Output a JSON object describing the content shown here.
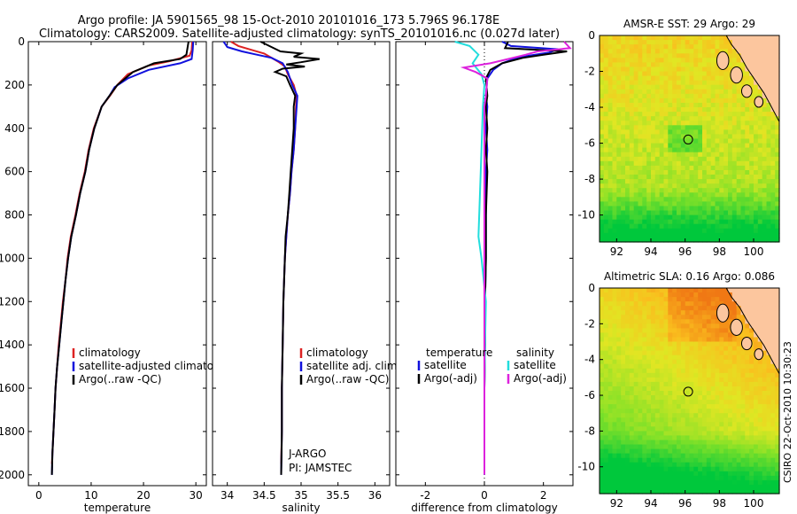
{
  "title": {
    "line1": "Argo profile: JA 5901565_98 15-Oct-2010 20101016_173 5.796S 96.178E",
    "line2": "Climatology: CARS2009. Satellite-adjusted climatology: synTS_20101016.nc (0.027d later)"
  },
  "credit": "CSIRO 22-Oct-2010 10:30:23",
  "colors": {
    "climatology": "#dd2222",
    "satellite": "#1111dd",
    "argo": "#000000",
    "satellite_salinity": "#22dddd",
    "argo_salinity": "#dd22dd"
  },
  "chart_data": [
    {
      "id": "temperature",
      "type": "line",
      "xlabel": "temperature",
      "xlim": [
        -2,
        32
      ],
      "ylim": [
        0,
        2050
      ],
      "xticks": [
        0,
        10,
        20,
        30
      ],
      "yticks": [
        0,
        200,
        400,
        600,
        800,
        1000,
        1200,
        1400,
        1600,
        1800,
        2000
      ],
      "legend": [
        "climatology",
        "satellite-adjusted climatology",
        "Argo(..raw -QC)"
      ],
      "series": [
        {
          "name": "climatology",
          "color": "#dd2222",
          "points": [
            [
              29.3,
              0
            ],
            [
              29.2,
              40
            ],
            [
              28.8,
              65
            ],
            [
              25,
              90
            ],
            [
              21,
              110
            ],
            [
              17,
              150
            ],
            [
              15,
              200
            ],
            [
              13.6,
              250
            ],
            [
              12,
              300
            ],
            [
              10.5,
              400
            ],
            [
              9.5,
              500
            ],
            [
              8.8,
              600
            ],
            [
              7.8,
              700
            ],
            [
              7,
              800
            ],
            [
              6.1,
              900
            ],
            [
              5.5,
              1000
            ],
            [
              5.1,
              1100
            ],
            [
              4.6,
              1200
            ],
            [
              4.2,
              1300
            ],
            [
              3.8,
              1400
            ],
            [
              3.5,
              1500
            ],
            [
              3.2,
              1600
            ],
            [
              3,
              1700
            ],
            [
              2.8,
              1800
            ],
            [
              2.6,
              1900
            ],
            [
              2.5,
              1950
            ]
          ]
        },
        {
          "name": "satellite-adjusted climatology",
          "color": "#1111dd",
          "points": [
            [
              29.5,
              0
            ],
            [
              29.4,
              40
            ],
            [
              29.2,
              80
            ],
            [
              27,
              100
            ],
            [
              21,
              130
            ],
            [
              17,
              170
            ],
            [
              14.5,
              210
            ],
            [
              13.5,
              250
            ],
            [
              12,
              300
            ],
            [
              10.6,
              400
            ],
            [
              9.6,
              500
            ],
            [
              8.9,
              600
            ],
            [
              7.9,
              700
            ],
            [
              7.1,
              800
            ],
            [
              6.2,
              900
            ],
            [
              5.6,
              1000
            ],
            [
              5.1,
              1100
            ],
            [
              4.7,
              1200
            ],
            [
              4.3,
              1300
            ],
            [
              3.9,
              1400
            ],
            [
              3.5,
              1500
            ],
            [
              3.2,
              1600
            ],
            [
              3,
              1700
            ],
            [
              2.8,
              1800
            ],
            [
              2.6,
              1900
            ],
            [
              2.5,
              2000
            ]
          ]
        },
        {
          "name": "Argo(..raw -QC)",
          "color": "#000000",
          "points": [
            [
              28.6,
              0
            ],
            [
              28.4,
              30
            ],
            [
              28.2,
              60
            ],
            [
              27,
              80
            ],
            [
              22,
              100
            ],
            [
              18,
              140
            ],
            [
              15,
              200
            ],
            [
              13.5,
              250
            ],
            [
              12,
              300
            ],
            [
              10.6,
              400
            ],
            [
              9.6,
              500
            ],
            [
              8.9,
              600
            ],
            [
              7.9,
              700
            ],
            [
              7.1,
              800
            ],
            [
              6.2,
              900
            ],
            [
              5.6,
              1000
            ],
            [
              5.1,
              1100
            ],
            [
              4.7,
              1200
            ],
            [
              4.3,
              1300
            ],
            [
              3.9,
              1400
            ],
            [
              3.5,
              1500
            ],
            [
              3.2,
              1600
            ],
            [
              3,
              1700
            ],
            [
              2.8,
              1800
            ],
            [
              2.6,
              1900
            ],
            [
              2.5,
              2000
            ]
          ]
        }
      ]
    },
    {
      "id": "salinity",
      "type": "line",
      "xlabel": "salinity",
      "xlim": [
        33.8,
        36.2
      ],
      "ylim": [
        0,
        2050
      ],
      "xticks": [
        34,
        34.5,
        35,
        35.5,
        36
      ],
      "legend": [
        "climatology",
        "satellite adj. clim.",
        "Argo(..raw -QC)"
      ],
      "annotations": [
        "J-ARGO",
        "PI: JAMSTEC"
      ],
      "series": [
        {
          "name": "climatology",
          "color": "#dd2222",
          "points": [
            [
              34.05,
              0
            ],
            [
              34.15,
              20
            ],
            [
              34.35,
              40
            ],
            [
              34.5,
              55
            ],
            [
              34.6,
              75
            ],
            [
              34.7,
              95
            ],
            [
              34.78,
              115
            ],
            [
              34.82,
              150
            ],
            [
              34.9,
              200
            ],
            [
              34.94,
              250
            ],
            [
              34.93,
              300
            ],
            [
              34.92,
              400
            ],
            [
              34.9,
              500
            ],
            [
              34.87,
              600
            ],
            [
              34.85,
              700
            ],
            [
              34.82,
              800
            ],
            [
              34.8,
              900
            ],
            [
              34.78,
              1000
            ],
            [
              34.76,
              1200
            ],
            [
              34.75,
              1400
            ],
            [
              34.74,
              1600
            ],
            [
              34.74,
              1800
            ],
            [
              34.73,
              1950
            ]
          ]
        },
        {
          "name": "satellite adj. clim.",
          "color": "#1111dd",
          "points": [
            [
              33.95,
              0
            ],
            [
              34.0,
              25
            ],
            [
              34.2,
              45
            ],
            [
              34.4,
              60
            ],
            [
              34.6,
              75
            ],
            [
              34.75,
              100
            ],
            [
              34.82,
              140
            ],
            [
              34.88,
              200
            ],
            [
              34.95,
              250
            ],
            [
              34.94,
              300
            ],
            [
              34.92,
              400
            ],
            [
              34.9,
              500
            ],
            [
              34.87,
              600
            ],
            [
              34.85,
              700
            ],
            [
              34.82,
              800
            ],
            [
              34.8,
              900
            ],
            [
              34.78,
              1000
            ],
            [
              34.76,
              1200
            ],
            [
              34.75,
              1400
            ],
            [
              34.74,
              1600
            ],
            [
              34.74,
              1800
            ],
            [
              34.73,
              2000
            ]
          ]
        },
        {
          "name": "Argo(..raw -QC)",
          "color": "#000000",
          "points": [
            [
              34.45,
              0
            ],
            [
              34.6,
              25
            ],
            [
              34.72,
              45
            ],
            [
              35.0,
              55
            ],
            [
              34.9,
              70
            ],
            [
              35.25,
              80
            ],
            [
              35.0,
              95
            ],
            [
              34.8,
              105
            ],
            [
              35.05,
              115
            ],
            [
              34.75,
              125
            ],
            [
              34.65,
              140
            ],
            [
              34.8,
              160
            ],
            [
              34.85,
              200
            ],
            [
              34.92,
              250
            ],
            [
              34.9,
              300
            ],
            [
              34.9,
              400
            ],
            [
              34.88,
              500
            ],
            [
              34.86,
              600
            ],
            [
              34.84,
              700
            ],
            [
              34.82,
              800
            ],
            [
              34.79,
              900
            ],
            [
              34.78,
              1000
            ],
            [
              34.76,
              1200
            ],
            [
              34.75,
              1400
            ],
            [
              34.74,
              1600
            ],
            [
              34.74,
              1800
            ],
            [
              34.73,
              2000
            ]
          ]
        }
      ]
    },
    {
      "id": "difference",
      "type": "line",
      "xlabel": "difference from climatology",
      "xlim": [
        -3,
        3
      ],
      "ylim": [
        0,
        2050
      ],
      "xticks": [
        -2,
        0,
        2
      ],
      "legend_left_title": "temperature",
      "legend_right_title": "salinity",
      "legend_left": [
        "satellite",
        "Argo(-adj)"
      ],
      "legend_right": [
        "satellite",
        "Argo(-adj)"
      ],
      "series": [
        {
          "name": "temperature satellite",
          "color": "#1111dd",
          "points": [
            [
              0.6,
              0
            ],
            [
              0.9,
              20
            ],
            [
              2.5,
              35
            ],
            [
              2.2,
              50
            ],
            [
              1.5,
              65
            ],
            [
              1.0,
              80
            ],
            [
              0.6,
              100
            ],
            [
              0.3,
              130
            ],
            [
              0.1,
              170
            ],
            [
              0.05,
              250
            ],
            [
              0.1,
              300
            ],
            [
              0.05,
              400
            ],
            [
              0.1,
              500
            ],
            [
              0.05,
              600
            ],
            [
              0.05,
              800
            ],
            [
              0.05,
              1000
            ],
            [
              0.02,
              1200
            ],
            [
              0.02,
              1400
            ],
            [
              0.0,
              1600
            ],
            [
              0.0,
              1800
            ],
            [
              0.0,
              2000
            ]
          ]
        },
        {
          "name": "temperature Argo(-adj)",
          "color": "#000000",
          "points": [
            [
              0.8,
              0
            ],
            [
              0.7,
              30
            ],
            [
              2.8,
              45
            ],
            [
              2.0,
              60
            ],
            [
              1.3,
              75
            ],
            [
              0.6,
              100
            ],
            [
              0.2,
              130
            ],
            [
              0.05,
              170
            ],
            [
              0.1,
              250
            ],
            [
              0.05,
              300
            ],
            [
              0.1,
              400
            ],
            [
              0.05,
              500
            ],
            [
              0.1,
              600
            ],
            [
              0.05,
              800
            ],
            [
              0.05,
              1000
            ],
            [
              0.02,
              1200
            ],
            [
              0.02,
              1400
            ],
            [
              0.0,
              1600
            ],
            [
              0.0,
              1800
            ],
            [
              0.0,
              2000
            ]
          ]
        },
        {
          "name": "salinity satellite",
          "color": "#22dddd",
          "points": [
            [
              -1.0,
              0
            ],
            [
              -0.5,
              20
            ],
            [
              -0.2,
              60
            ],
            [
              -0.4,
              100
            ],
            [
              -0.1,
              150
            ],
            [
              0.0,
              200
            ],
            [
              -0.05,
              300
            ],
            [
              -0.1,
              500
            ],
            [
              -0.15,
              700
            ],
            [
              -0.2,
              900
            ],
            [
              -0.1,
              1000
            ],
            [
              0.05,
              1200
            ],
            [
              0.02,
              1400
            ],
            [
              0.0,
              1600
            ],
            [
              0.0,
              1800
            ],
            [
              0.0,
              2000
            ]
          ]
        },
        {
          "name": "salinity Argo(-adj)",
          "color": "#dd22dd",
          "points": [
            [
              2.7,
              0
            ],
            [
              2.9,
              30
            ],
            [
              1.8,
              45
            ],
            [
              1.4,
              60
            ],
            [
              0.8,
              80
            ],
            [
              0.2,
              100
            ],
            [
              -0.7,
              120
            ],
            [
              -0.3,
              140
            ],
            [
              0.1,
              170
            ],
            [
              0.05,
              250
            ],
            [
              0.0,
              300
            ],
            [
              0.0,
              500
            ],
            [
              0.0,
              800
            ],
            [
              0.0,
              1200
            ],
            [
              0.0,
              1600
            ],
            [
              0.0,
              2000
            ]
          ]
        }
      ]
    },
    {
      "id": "sst-map",
      "type": "heatmap",
      "title": "AMSR-E SST: 29 Argo: 29",
      "xlim": [
        91,
        101.5
      ],
      "ylim": [
        -11.5,
        0
      ],
      "xticks": [
        92,
        94,
        96,
        98,
        100
      ],
      "yticks": [
        0,
        -2,
        -4,
        -6,
        -8,
        -10
      ],
      "marker": {
        "lon": 96.178,
        "lat": -5.796
      }
    },
    {
      "id": "sla-map",
      "type": "heatmap",
      "title": "Altimetric SLA: 0.16 Argo: 0.086",
      "xlim": [
        91,
        101.5
      ],
      "ylim": [
        -11.5,
        0
      ],
      "xticks": [
        92,
        94,
        96,
        98,
        100
      ],
      "yticks": [
        0,
        -2,
        -4,
        -6,
        -8,
        -10
      ],
      "marker": {
        "lon": 96.178,
        "lat": -5.796
      }
    }
  ]
}
